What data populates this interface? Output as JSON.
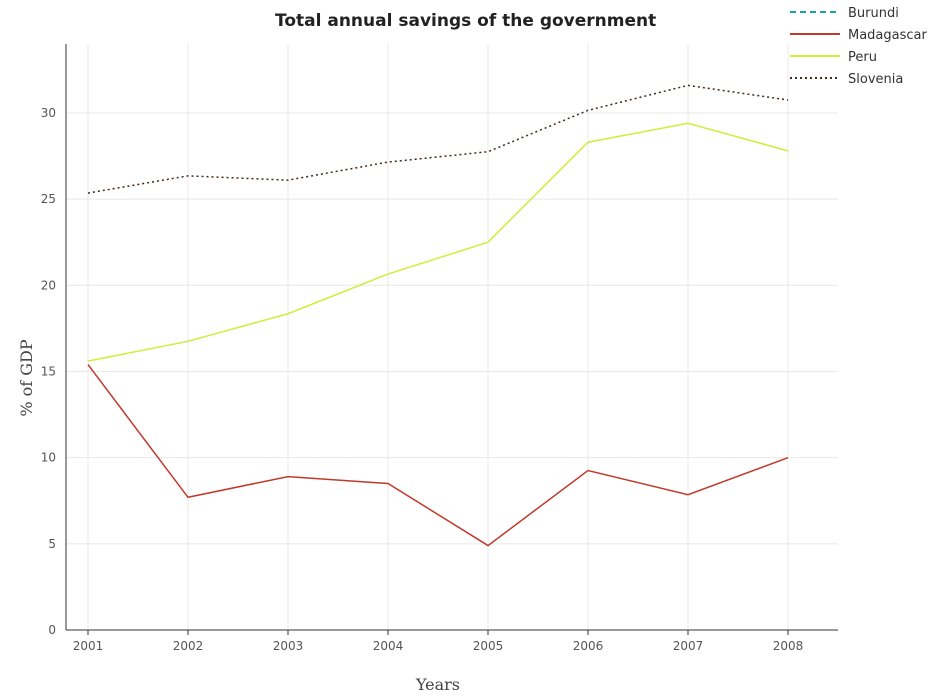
{
  "chart_data": {
    "type": "line",
    "title": "Total annual savings of the government",
    "xlabel": "Years",
    "ylabel": "% of GDP",
    "categories": [
      "2001",
      "2002",
      "2003",
      "2004",
      "2005",
      "2006",
      "2007",
      "2008"
    ],
    "ylim": [
      0,
      34
    ],
    "yticks": [
      0,
      5,
      10,
      15,
      20,
      25,
      30
    ],
    "grid": true,
    "legend_position": "top-right",
    "series": [
      {
        "name": "Burundi",
        "color": "#17a5a5",
        "style": "dashed",
        "values": [
          null,
          null,
          null,
          null,
          null,
          null,
          null,
          null
        ]
      },
      {
        "name": "Madagascar",
        "color": "#c0392b",
        "style": "solid",
        "values": [
          15.4,
          7.7,
          8.9,
          8.5,
          4.9,
          9.25,
          7.85,
          10.0
        ]
      },
      {
        "name": "Peru",
        "color": "#ccf03a",
        "style": "solid",
        "values": [
          15.6,
          16.75,
          18.35,
          20.65,
          22.5,
          28.3,
          29.4,
          27.8
        ]
      },
      {
        "name": "Slovenia",
        "color": "#3d2b1f",
        "style": "dotted",
        "values": [
          25.35,
          26.35,
          26.1,
          27.15,
          27.75,
          30.15,
          31.6,
          30.75
        ]
      }
    ]
  }
}
